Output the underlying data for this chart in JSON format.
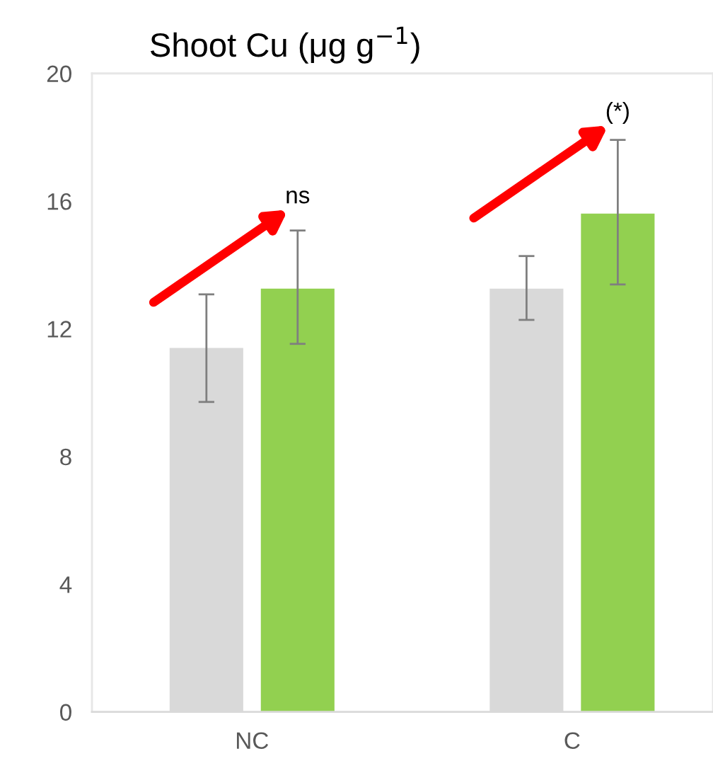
{
  "chart_data": {
    "type": "bar",
    "title": "Shoot Cu (μg g$^{−1}$)",
    "categories": [
      "NC",
      "C"
    ],
    "series": [
      {
        "color": "#d9d9d9",
        "values": [
          11.4,
          13.26
        ],
        "errors": [
          [
            9.71,
            13.08
          ],
          [
            12.28,
            14.28
          ]
        ]
      },
      {
        "color": "#92d050",
        "values": [
          13.26,
          15.61
        ],
        "errors": [
          [
            11.53,
            15.08
          ],
          [
            13.39,
            17.92
          ]
        ]
      }
    ],
    "ylim": [
      0,
      20
    ],
    "yticks": [
      0,
      4,
      8,
      12,
      16,
      20
    ],
    "grid": false,
    "annotations": [
      "ns",
      "(*)"
    ]
  }
}
